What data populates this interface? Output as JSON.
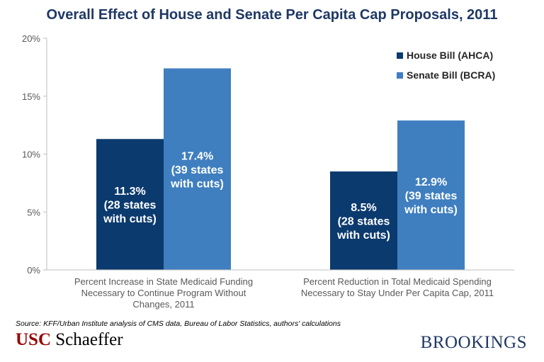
{
  "chart_data": {
    "type": "bar",
    "title": "Overall Effect of House and Senate Per Capita Cap Proposals, 2011",
    "categories": [
      [
        "Percent Increase in State Medicaid Funding",
        "Necessary to Continue Program Without",
        "Changes, 2011"
      ],
      [
        "Percent Reduction in Total Medicaid Spending",
        "Necessary to Stay Under Per Capita Cap, 2011"
      ]
    ],
    "series": [
      {
        "name": "House Bill (AHCA)",
        "color": "#0b3a6e",
        "values": [
          11.3,
          8.5
        ],
        "labels": [
          [
            "11.3%",
            "(28 states",
            "with cuts)"
          ],
          [
            "8.5%",
            "(28 states",
            "with cuts)"
          ]
        ]
      },
      {
        "name": "Senate Bill (BCRA)",
        "color": "#3f7fc0",
        "values": [
          17.4,
          12.9
        ],
        "labels": [
          [
            "17.4%",
            "(39 states",
            "with cuts)"
          ],
          [
            "12.9%",
            "(39 states",
            "with cuts)"
          ]
        ]
      }
    ],
    "ylim": [
      0,
      20
    ],
    "yticks": [
      0,
      5,
      10,
      15,
      20
    ],
    "ytick_labels": [
      "0%",
      "5%",
      "10%",
      "15%",
      "20%"
    ],
    "xlabel": "",
    "ylabel": "",
    "grid": false,
    "legend_position": "top-right"
  },
  "source": "Source: KFF/Urban Institute analysis of CMS data, Bureau of Labor Statistics, authors' calculations",
  "logos": {
    "usc_a": "USC",
    "usc_b": "Schaeffer",
    "brookings": "BROOKINGS"
  }
}
